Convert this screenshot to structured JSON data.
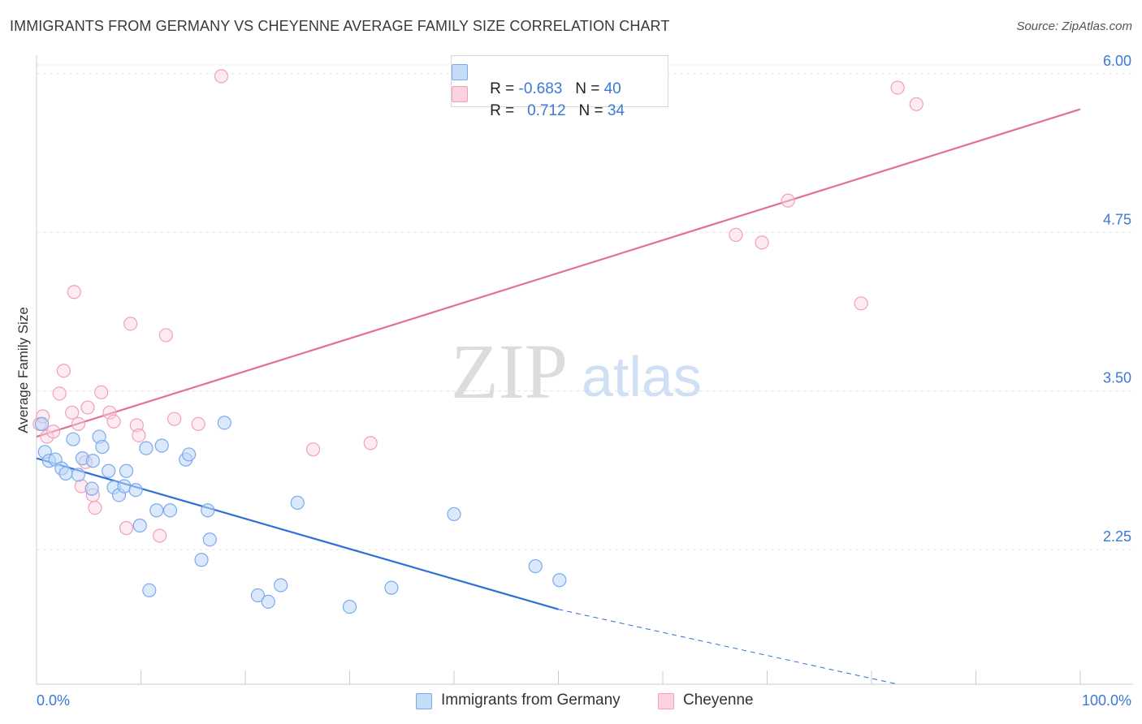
{
  "title": "IMMIGRANTS FROM GERMANY VS CHEYENNE AVERAGE FAMILY SIZE CORRELATION CHART",
  "source": "Source: ZipAtlas.com",
  "watermark": {
    "zip": "ZIP",
    "atlas": "atlas"
  },
  "legend": {
    "rows": [
      {
        "r_label": "R = ",
        "r_value": "-0.683",
        "n_label": "N = ",
        "n_value": "40"
      },
      {
        "r_label": "R = ",
        "r_value": "0.712",
        "n_label": "N = ",
        "n_value": "34"
      }
    ]
  },
  "chart_data": {
    "type": "scatter",
    "title": "IMMIGRANTS FROM GERMANY VS CHEYENNE AVERAGE FAMILY SIZE CORRELATION CHART",
    "xlabel": "",
    "ylabel": "Average Family Size",
    "x_tick_labels": [
      "0.0%",
      "100.0%"
    ],
    "y_tick_labels": [
      "2.25",
      "3.50",
      "4.75",
      "6.00"
    ],
    "y_ticks": [
      2.25,
      3.5,
      4.75,
      6.0
    ],
    "xlim": [
      0,
      100
    ],
    "ylim": [
      1.19,
      6.12
    ],
    "grid": true,
    "legend_position": "top-center",
    "colors": {
      "germany": "#7aaaf0",
      "cheyenne": "#f0a0bb",
      "germany_line": "#2f6fd6",
      "cheyenne_line": "#e0709a"
    },
    "series": [
      {
        "name": "Immigrants from Germany",
        "r": -0.683,
        "n": 40,
        "trend": {
          "x0": 0,
          "y0": 2.97,
          "x1": 50,
          "y1": 1.78,
          "x_dash_end": 82.5,
          "y_dash_end": 1.19
        },
        "points": [
          [
            0.5,
            3.24
          ],
          [
            0.8,
            3.02
          ],
          [
            1.2,
            2.95
          ],
          [
            1.8,
            2.96
          ],
          [
            2.4,
            2.89
          ],
          [
            2.8,
            2.85
          ],
          [
            3.5,
            3.12
          ],
          [
            4.0,
            2.84
          ],
          [
            4.4,
            2.97
          ],
          [
            5.4,
            2.95
          ],
          [
            5.3,
            2.73
          ],
          [
            6.0,
            3.14
          ],
          [
            6.3,
            3.06
          ],
          [
            6.9,
            2.87
          ],
          [
            7.4,
            2.74
          ],
          [
            7.9,
            2.68
          ],
          [
            8.4,
            2.75
          ],
          [
            8.6,
            2.87
          ],
          [
            9.5,
            2.72
          ],
          [
            9.9,
            2.44
          ],
          [
            10.5,
            3.05
          ],
          [
            10.8,
            1.93
          ],
          [
            11.5,
            2.56
          ],
          [
            12.0,
            3.07
          ],
          [
            12.8,
            2.56
          ],
          [
            14.3,
            2.96
          ],
          [
            14.6,
            3.0
          ],
          [
            15.8,
            2.17
          ],
          [
            16.4,
            2.56
          ],
          [
            16.6,
            2.33
          ],
          [
            18.0,
            3.25
          ],
          [
            21.2,
            1.89
          ],
          [
            22.2,
            1.84
          ],
          [
            23.4,
            1.97
          ],
          [
            25.0,
            2.62
          ],
          [
            30.0,
            1.8
          ],
          [
            34.0,
            1.95
          ],
          [
            40.0,
            2.53
          ],
          [
            47.8,
            2.12
          ],
          [
            50.1,
            2.01
          ]
        ]
      },
      {
        "name": "Cheyenne",
        "r": 0.712,
        "n": 34,
        "trend": {
          "x0": 0,
          "y0": 3.14,
          "x1": 100,
          "y1": 5.72
        },
        "points": [
          [
            0.3,
            3.24
          ],
          [
            0.6,
            3.3
          ],
          [
            1.0,
            3.14
          ],
          [
            1.6,
            3.18
          ],
          [
            2.2,
            3.48
          ],
          [
            2.6,
            3.66
          ],
          [
            3.4,
            3.33
          ],
          [
            3.6,
            4.28
          ],
          [
            4.0,
            3.24
          ],
          [
            4.3,
            2.75
          ],
          [
            4.7,
            2.94
          ],
          [
            4.9,
            3.37
          ],
          [
            5.4,
            2.68
          ],
          [
            5.6,
            2.58
          ],
          [
            6.2,
            3.49
          ],
          [
            7.0,
            3.33
          ],
          [
            7.4,
            3.26
          ],
          [
            8.6,
            2.42
          ],
          [
            9.0,
            4.03
          ],
          [
            9.6,
            3.23
          ],
          [
            9.8,
            3.15
          ],
          [
            11.8,
            2.36
          ],
          [
            12.4,
            3.94
          ],
          [
            13.2,
            3.28
          ],
          [
            15.5,
            3.24
          ],
          [
            17.7,
            5.98
          ],
          [
            26.5,
            3.04
          ],
          [
            32.0,
            3.09
          ],
          [
            67.0,
            4.73
          ],
          [
            69.5,
            4.67
          ],
          [
            72.0,
            5.0
          ],
          [
            79.0,
            4.19
          ],
          [
            82.5,
            5.89
          ],
          [
            84.3,
            5.76
          ]
        ]
      }
    ]
  },
  "bottom_legend": [
    "Immigrants from Germany",
    "Cheyenne"
  ]
}
